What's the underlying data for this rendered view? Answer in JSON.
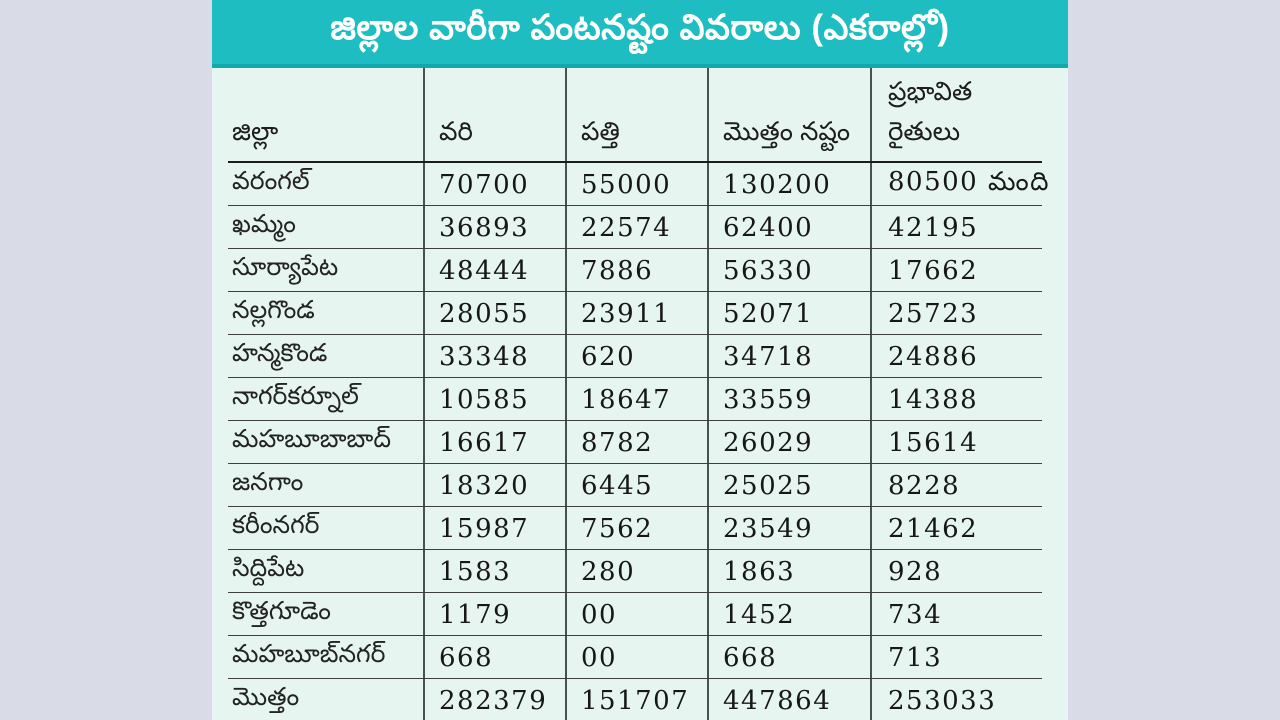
{
  "title": "జిల్లాల వారీగా పంటనష్టం వివరాలు (ఎకరాల్లో)",
  "header_display": {
    "farmers_line1": "ప్రభావిత",
    "farmers_line2": "రైతులు"
  },
  "colors": {
    "accent_teal": "#1dbdc2",
    "accent_teal_dark": "#12a9ae",
    "table_bg": "#e7f5f1",
    "page_bg": "#d9dbe6",
    "title_text": "#ffffff",
    "line_color": "#3f3f3f"
  },
  "chart_data": {
    "type": "table",
    "title": "జిల్లాల వారీగా పంటనష్టం వివరాలు (ఎకరాల్లో)",
    "columns": [
      "జిల్లా",
      "వరి",
      "పత్తి",
      "మొత్తం నష్టం",
      "ప్రభావిత రైతులు"
    ],
    "rows": [
      [
        "వరంగల్",
        "70700",
        "55000",
        "130200",
        "80500 మంది"
      ],
      [
        "ఖమ్మం",
        "36893",
        "22574",
        "62400",
        "42195"
      ],
      [
        "సూర్యాపేట",
        "48444",
        "7886",
        "56330",
        "17662"
      ],
      [
        "నల్లగొండ",
        "28055",
        "23911",
        "52071",
        "25723"
      ],
      [
        "హన్మకొండ",
        "33348",
        "620",
        "34718",
        "24886"
      ],
      [
        "నాగర్‌కర్నూల్",
        "10585",
        "18647",
        "33559",
        "14388"
      ],
      [
        "మహబూబాబాద్",
        "16617",
        "8782",
        "26029",
        "15614"
      ],
      [
        "జనగాం",
        "18320",
        "6445",
        "25025",
        "8228"
      ],
      [
        "కరీంనగర్",
        "15987",
        "7562",
        "23549",
        "21462"
      ],
      [
        "సిద్దిపేట",
        "1583",
        "280",
        "1863",
        "928"
      ],
      [
        "కొత్తగూడెం",
        "1179",
        "00",
        "1452",
        "734"
      ],
      [
        "మహబూబ్‌నగర్",
        "668",
        "00",
        "668",
        "713"
      ],
      [
        "మొత్తం",
        "282379",
        "151707",
        "447864",
        "253033"
      ]
    ]
  }
}
